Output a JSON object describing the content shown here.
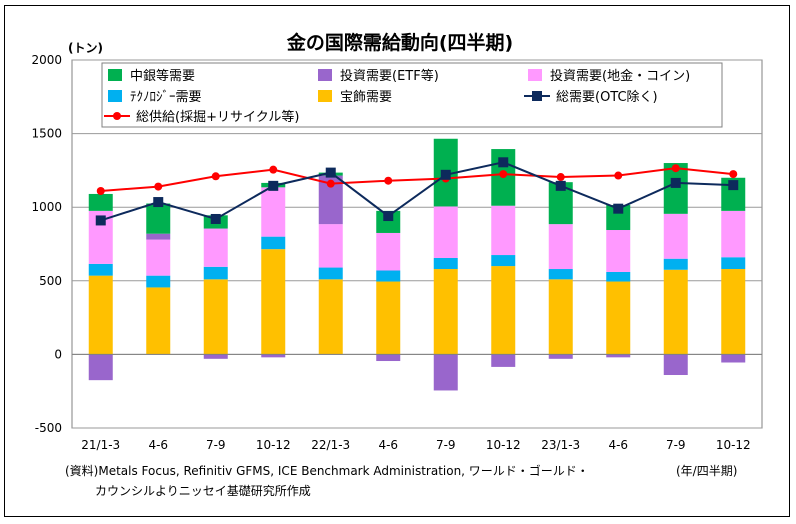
{
  "chart_data": {
    "type": "bar",
    "title": "金の国際需給動向(四半期)",
    "ylabel": "(トン)",
    "xlabel": "(年/四半期)",
    "ylim": [
      -500,
      2000
    ],
    "yticks": [
      -500,
      0,
      500,
      1000,
      1500,
      2000
    ],
    "grid": true,
    "legend_position": "top",
    "categories": [
      "21/1-3",
      "4-6",
      "7-9",
      "10-12",
      "22/1-3",
      "4-6",
      "7-9",
      "10-12",
      "23/1-3",
      "4-6",
      "7-9",
      "10-12"
    ],
    "stacked_series": [
      {
        "name": "宝飾需要",
        "color": "#FFC000",
        "values": [
          535,
          455,
          510,
          715,
          510,
          495,
          580,
          600,
          510,
          495,
          575,
          580
        ]
      },
      {
        "name": "ﾃｸﾉﾛｼﾞｰ需要",
        "color": "#00B0F0",
        "values": [
          80,
          80,
          85,
          85,
          80,
          75,
          75,
          75,
          70,
          65,
          75,
          80
        ]
      },
      {
        "name": "投資需要(地金・コイン)",
        "color": "#FF99FF",
        "values": [
          360,
          245,
          260,
          335,
          295,
          255,
          350,
          335,
          305,
          285,
          305,
          315
        ]
      },
      {
        "name": "投資需要(ETF等)",
        "color": "#9966CC",
        "values": [
          -175,
          40,
          -30,
          -20,
          330,
          -45,
          -245,
          -85,
          -30,
          -20,
          -140,
          -55
        ]
      },
      {
        "name": "中銀等需要",
        "color": "#00B050",
        "values": [
          115,
          205,
          90,
          30,
          20,
          150,
          460,
          385,
          285,
          170,
          345,
          225
        ]
      }
    ],
    "line_series": [
      {
        "name": "総需要(OTC除く)",
        "color": "#0D2A5C",
        "marker": "square",
        "values": [
          910,
          1035,
          920,
          1145,
          1235,
          940,
          1220,
          1305,
          1145,
          990,
          1165,
          1150
        ]
      },
      {
        "name": "総供給(採掘+リサイクル等)",
        "color": "#FF0000",
        "marker": "circle",
        "values": [
          1110,
          1140,
          1210,
          1255,
          1160,
          1180,
          1195,
          1225,
          1205,
          1215,
          1265,
          1225
        ]
      }
    ],
    "legend_order": [
      "中銀等需要",
      "投資需要(ETF等)",
      "投資需要(地金・コイン)",
      "ﾃｸﾉﾛｼﾞｰ需要",
      "宝飾需要",
      "総需要(OTC除く)",
      "総供給(採掘+リサイクル等)"
    ]
  },
  "source_line1": "(資料)Metals Focus, Refinitiv GFMS, ICE Benchmark Administration, ワールド・ゴールド・",
  "source_line2": "カウンシルよりニッセイ基礎研究所作成"
}
